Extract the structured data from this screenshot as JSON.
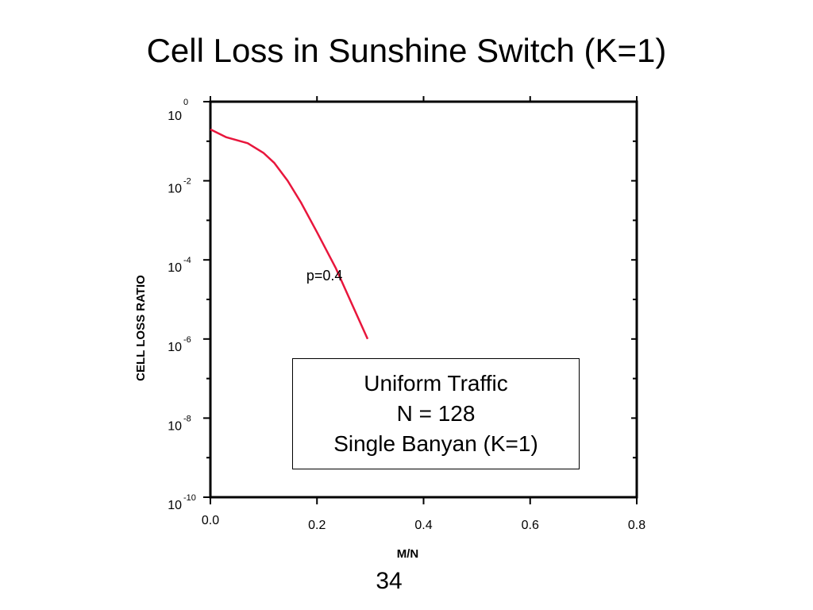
{
  "slide": {
    "title": "Cell Loss in Sunshine Switch (K=1)",
    "page_number": "34"
  },
  "info_box": {
    "lines": [
      "Uniform Traffic",
      "N = 128",
      "Single Banyan (K=1)"
    ]
  },
  "chart_data": {
    "type": "line",
    "title": "",
    "xlabel": "M/N",
    "ylabel": "CELL LOSS RATIO",
    "xlim": [
      0.0,
      0.8
    ],
    "y_scale": "log",
    "ylim_exponent": [
      -10,
      0
    ],
    "x_ticks": [
      {
        "value": 0.0,
        "label": "0.0"
      },
      {
        "value": 0.2,
        "label": "0.2"
      },
      {
        "value": 0.4,
        "label": "0.4"
      },
      {
        "value": 0.6,
        "label": "0.6"
      },
      {
        "value": 0.8,
        "label": "0.8"
      }
    ],
    "y_ticks": [
      {
        "exponent": 0,
        "base": "10",
        "sup": "0"
      },
      {
        "exponent": -2,
        "base": "10",
        "sup": "-2"
      },
      {
        "exponent": -4,
        "base": "10",
        "sup": "-4"
      },
      {
        "exponent": -6,
        "base": "10",
        "sup": "-6"
      },
      {
        "exponent": -8,
        "base": "10",
        "sup": "-8"
      },
      {
        "exponent": -10,
        "base": "10",
        "sup": "-10"
      }
    ],
    "grid": false,
    "series": [
      {
        "name": "p=0.4",
        "color": "#e8163c",
        "x": [
          0.0,
          0.03,
          0.07,
          0.1,
          0.12,
          0.145,
          0.17,
          0.2,
          0.235,
          0.265,
          0.295
        ],
        "y_log10": [
          -0.7,
          -0.9,
          -1.05,
          -1.3,
          -1.55,
          -2.0,
          -2.55,
          -3.3,
          -4.2,
          -5.1,
          -6.0
        ]
      }
    ],
    "annotations": [
      {
        "text": "p=0.4",
        "x": 0.18,
        "y_log10": -4.4
      }
    ]
  }
}
